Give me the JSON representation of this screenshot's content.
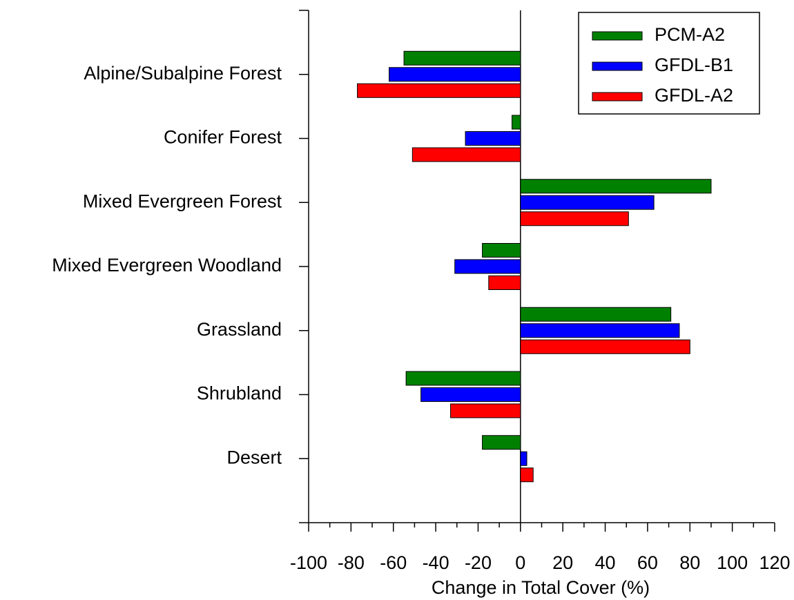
{
  "chart_data": {
    "type": "hbar",
    "x_label": "Change in Total Cover (%)",
    "categories": [
      "Alpine/Subalpine Forest",
      "Conifer Forest",
      "Mixed Evergreen Forest",
      "Mixed Evergreen Woodland",
      "Grassland",
      "Shrubland",
      "Desert"
    ],
    "series": [
      {
        "name": "PCM-A2",
        "color": "#008000",
        "values": [
          -55,
          -4,
          90,
          -18,
          71,
          -54,
          -18
        ]
      },
      {
        "name": "GFDL-B1",
        "color": "#0000ff",
        "values": [
          -62,
          -26,
          63,
          -31,
          75,
          -47,
          3
        ]
      },
      {
        "name": "GFDL-A2",
        "color": "#ff0000",
        "values": [
          -77,
          -51,
          51,
          -15,
          80,
          -33,
          6
        ]
      }
    ],
    "xlim": [
      -100,
      120
    ],
    "xticks": [
      -100,
      -80,
      -60,
      -40,
      -20,
      0,
      20,
      40,
      60,
      80,
      100,
      120
    ],
    "legend": "upper right"
  }
}
